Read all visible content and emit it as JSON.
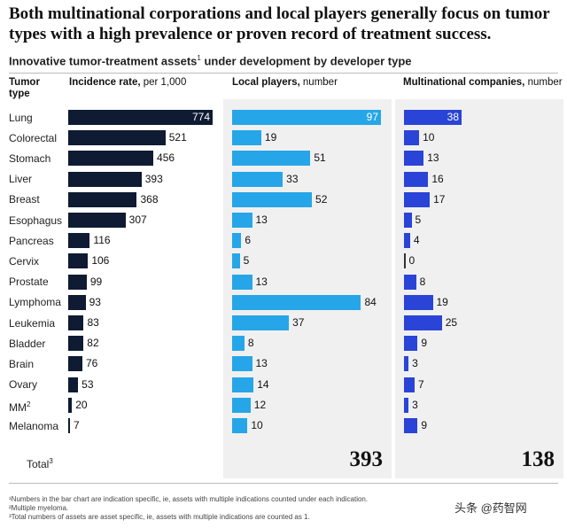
{
  "title": "Both multinational corporations and local players generally focus on tumor types with a high prevalence or proven record of treatment success.",
  "subtitle": "Innovative tumor-treatment assets",
  "subtitle_sup": "1",
  "subtitle_rest": " under development by developer type",
  "headers": {
    "tumor": "Tumor type",
    "incidence_label": "Incidence rate,",
    "incidence_unit": " per 1,000",
    "local_label": "Local players,",
    "local_unit": " number",
    "multi_label": "Multinational companies,",
    "multi_unit": " number"
  },
  "chart_data": {
    "type": "bar",
    "orientation": "horizontal",
    "categories": [
      "Lung",
      "Colorectal",
      "Stomach",
      "Liver",
      "Breast",
      "Esophagus",
      "Pancreas",
      "Cervix",
      "Prostate",
      "Lymphoma",
      "Leukemia",
      "Bladder",
      "Brain",
      "Ovary",
      "MM",
      "Melanoma"
    ],
    "category_sups": [
      "",
      "",
      "",
      "",
      "",
      "",
      "",
      "",
      "",
      "",
      "",
      "",
      "",
      "",
      "2",
      ""
    ],
    "series": [
      {
        "name": "Incidence rate, per 1,000",
        "values": [
          774,
          521,
          456,
          393,
          368,
          307,
          116,
          106,
          99,
          93,
          83,
          82,
          76,
          53,
          20,
          7
        ],
        "color": "#0e1b33"
      },
      {
        "name": "Local players, number",
        "values": [
          97,
          19,
          51,
          33,
          52,
          13,
          6,
          5,
          13,
          84,
          37,
          8,
          13,
          14,
          12,
          10
        ],
        "color": "#26a6e8"
      },
      {
        "name": "Multinational companies, number",
        "values": [
          38,
          10,
          13,
          16,
          17,
          5,
          4,
          0,
          8,
          19,
          25,
          9,
          3,
          7,
          3,
          9
        ],
        "color": "#2a44d8"
      }
    ],
    "totals": {
      "label": "Total",
      "label_sup": "3",
      "local": "393",
      "multinational": "138"
    }
  },
  "footnotes": [
    "¹Numbers in the bar chart are indication specific, ie, assets with multiple indications counted under each indication.",
    "²Multiple myeloma.",
    "³Total numbers of assets are asset specific, ie, assets with multiple indications are counted as 1."
  ],
  "watermark": "头条 @药智网"
}
